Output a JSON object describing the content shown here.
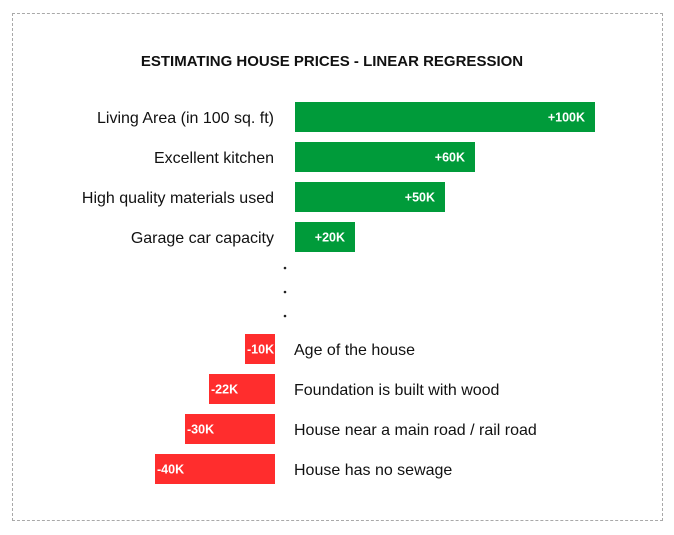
{
  "chart_data": {
    "type": "bar",
    "orientation": "horizontal",
    "title": "ESTIMATING HOUSE PRICES - LINEAR REGRESSION",
    "xlabel": "",
    "ylabel": "",
    "grid": false,
    "legend": "none",
    "units": "K",
    "colors": {
      "positive": "#009b3a",
      "negative": "#ff2d2d"
    },
    "positive": {
      "categories": [
        "Living Area (in 100 sq. ft)",
        "Excellent kitchen",
        "High quality materials used",
        "Garage car capacity"
      ],
      "values": [
        100,
        60,
        50,
        20
      ],
      "labels": [
        "+100K",
        "+60K",
        "+50K",
        "+20K"
      ]
    },
    "negative": {
      "categories": [
        "Age of the house",
        "Foundation is built with wood",
        "House near a main road / rail road",
        "House has no sewage"
      ],
      "values": [
        -10,
        -22,
        -30,
        -40
      ],
      "labels": [
        "-10K",
        "-22K",
        "-30K",
        "-40K"
      ]
    },
    "gap_marker": "⋮"
  }
}
